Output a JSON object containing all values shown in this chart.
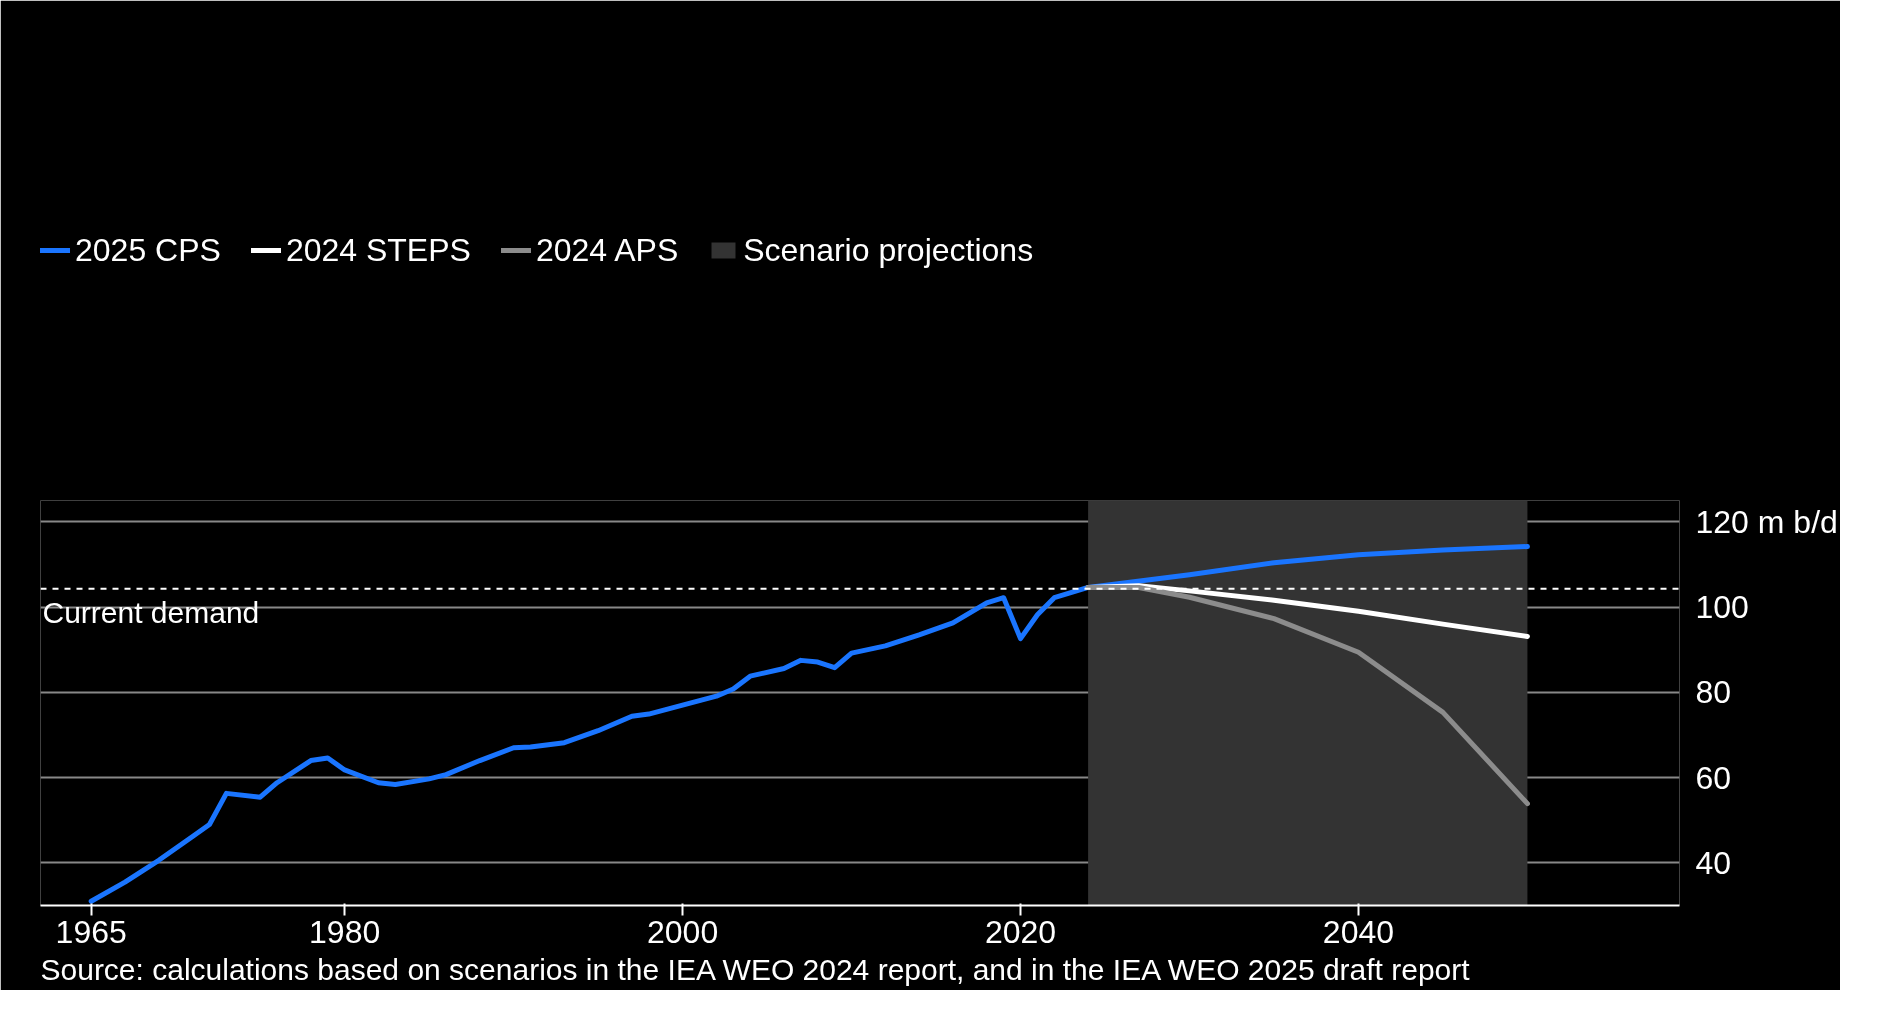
{
  "chart_data": {
    "type": "line",
    "series": [
      {
        "name": "2025 CPS",
        "color": "#1a75ff",
        "x": [
          1965,
          1967,
          1969,
          1971,
          1972,
          1973,
          1975,
          1976,
          1978,
          1979,
          1980,
          1982,
          1983,
          1985,
          1986,
          1988,
          1990,
          1991,
          1993,
          1995,
          1997,
          1998,
          2000,
          2002,
          2003,
          2004,
          2006,
          2007,
          2008,
          2009,
          2010,
          2012,
          2014,
          2016,
          2018,
          2019,
          2020,
          2021,
          2022,
          2024,
          2030,
          2035,
          2040,
          2045,
          2050
        ],
        "values": [
          31.0,
          35.5,
          40.6,
          46.2,
          49.0,
          56.3,
          55.4,
          58.8,
          64.0,
          64.6,
          61.8,
          58.8,
          58.4,
          59.7,
          60.7,
          64.0,
          67.0,
          67.2,
          68.2,
          71.0,
          74.4,
          74.9,
          77.0,
          79.1,
          80.8,
          83.8,
          85.6,
          87.5,
          87.1,
          85.8,
          89.2,
          90.9,
          93.5,
          96.3,
          101.0,
          102.2,
          92.6,
          98.2,
          102.2,
          104.6,
          107.6,
          110.4,
          112.3,
          113.4,
          114.2
        ]
      },
      {
        "name": "2024 STEPS",
        "color": "#ffffff",
        "x": [
          2024,
          2027,
          2030,
          2035,
          2040,
          2045,
          2050
        ],
        "values": [
          104.6,
          105.0,
          103.8,
          101.6,
          99.0,
          96.0,
          93.1
        ]
      },
      {
        "name": "2024 APS",
        "color": "#8c8c8c",
        "x": [
          2024,
          2027,
          2030,
          2035,
          2040,
          2045,
          2050
        ],
        "values": [
          104.6,
          104.6,
          102.3,
          97.3,
          89.4,
          75.3,
          53.9
        ]
      }
    ],
    "bands": [
      {
        "axis": "x",
        "from": 2024,
        "to": 2050,
        "label": "Scenario projections",
        "color": "#333333"
      }
    ],
    "ref_lines": [
      {
        "axis": "y",
        "value": 104.3,
        "label": "Current demand",
        "color": "#ffffff",
        "line_style": "dashed"
      }
    ],
    "xlim": [
      1962,
      2059
    ],
    "xticks": [
      1965,
      1980,
      2000,
      2020,
      2040
    ],
    "ylim": [
      30,
      125
    ],
    "yticks": [
      40,
      60,
      80,
      100,
      {
        "value": 120,
        "label": "120 m b/d"
      }
    ],
    "grid": "y",
    "legend": "top left",
    "line_style": "solid",
    "annotations": [
      "Source: calculations based on scenarios in the IEA WEO 2024 report, and in the IEA WEO 2025 draft report"
    ]
  }
}
